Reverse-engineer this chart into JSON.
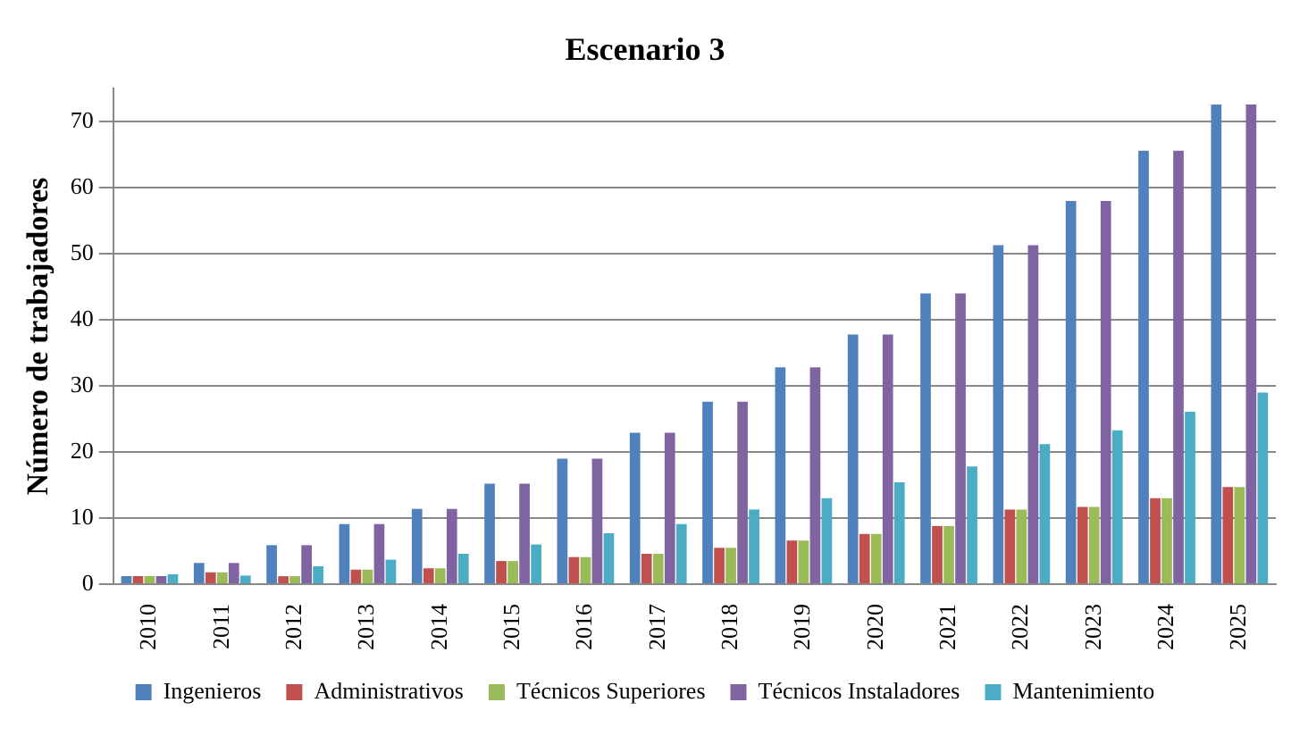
{
  "chart_data": {
    "type": "bar",
    "title": "Escenario 3",
    "ylabel": "Número de trabajadores",
    "categories": [
      "2010",
      "2011",
      "2012",
      "2013",
      "2014",
      "2015",
      "2016",
      "2017",
      "2018",
      "2019",
      "2020",
      "2021",
      "2022",
      "2023",
      "2024",
      "2025"
    ],
    "series": [
      {
        "name": "Ingenieros",
        "color": "#4f81bd",
        "values": [
          1.2,
          3.2,
          5.9,
          9.1,
          11.4,
          15.2,
          19,
          22.9,
          27.6,
          32.8,
          37.8,
          44,
          51.3,
          58,
          65.6,
          72.6
        ]
      },
      {
        "name": "Administrativos",
        "color": "#c0504d",
        "values": [
          1.2,
          1.8,
          1.2,
          2.2,
          2.4,
          3.5,
          4.1,
          4.6,
          5.5,
          6.6,
          7.6,
          8.8,
          11.3,
          11.7,
          13,
          14.7
        ]
      },
      {
        "name": "Técnicos Superiores",
        "color": "#9bbb59",
        "values": [
          1.2,
          1.8,
          1.2,
          2.2,
          2.4,
          3.5,
          4.1,
          4.6,
          5.5,
          6.6,
          7.6,
          8.8,
          11.3,
          11.7,
          13,
          14.7
        ]
      },
      {
        "name": "Técnicos Instaladores",
        "color": "#8064a2",
        "values": [
          1.2,
          3.2,
          5.9,
          9.1,
          11.4,
          15.2,
          19,
          22.9,
          27.6,
          32.8,
          37.8,
          44,
          51.3,
          58,
          65.6,
          72.6
        ]
      },
      {
        "name": "Mantenimiento",
        "color": "#4bacc6",
        "values": [
          1.5,
          1.3,
          2.7,
          3.7,
          4.6,
          6,
          7.7,
          9.1,
          11.3,
          13,
          15.4,
          17.8,
          21.2,
          23.3,
          26.1,
          29
        ]
      }
    ],
    "ylim": [
      0,
      75
    ],
    "yticks": [
      0,
      10,
      20,
      30,
      40,
      50,
      60,
      70
    ],
    "grid": "y",
    "legend": "bottom"
  }
}
